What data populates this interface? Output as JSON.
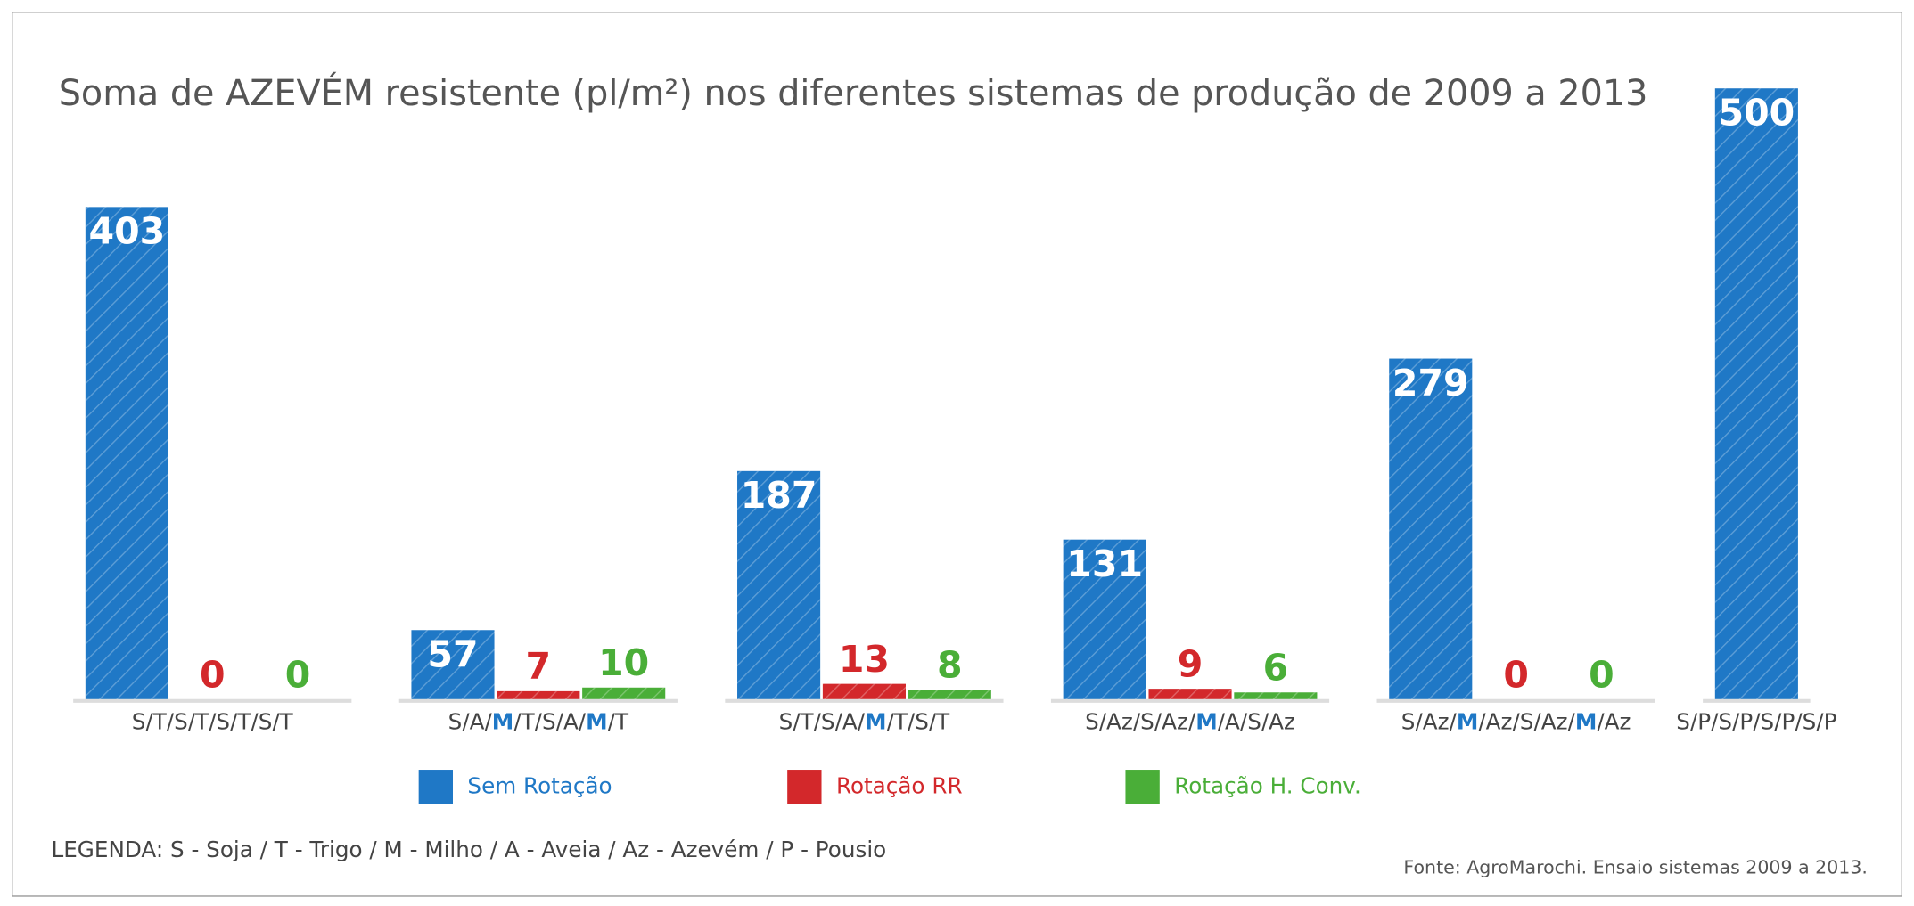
{
  "chart_data": {
    "type": "bar",
    "title": "Soma de AZEVÉM resistente (pl/m²) nos diferentes sistemas de produção de 2009 a 2013",
    "categories": [
      "S/T/S/T/S/T/S/T",
      "S/A/M/T/S/A/M/T",
      "S/T/S/A/M/T/S/T",
      "S/Az/S/Az/M/A/S/Az",
      "S/Az/M/Az/S/Az/M/Az",
      "S/P/S/P/S/P/S/P"
    ],
    "series": [
      {
        "name": "Sem Rotação",
        "color": "#1f78c6",
        "values": [
          403,
          57,
          187,
          131,
          279,
          500
        ]
      },
      {
        "name": "Rotação RR",
        "color": "#d3282b",
        "values": [
          0,
          7,
          13,
          9,
          0,
          null
        ]
      },
      {
        "name": "Rotação H. Conv.",
        "color": "#4aae38",
        "values": [
          0,
          10,
          8,
          6,
          0,
          null
        ]
      }
    ],
    "ylim": [
      0,
      500
    ],
    "note": "LEGENDA: S - Soja / T - Trigo / M - Milho / A - Aveia / Az - Azevém / P - Pousio",
    "source": "Fonte: AgroMarochi. Ensaio sistemas 2009 a 2013."
  }
}
